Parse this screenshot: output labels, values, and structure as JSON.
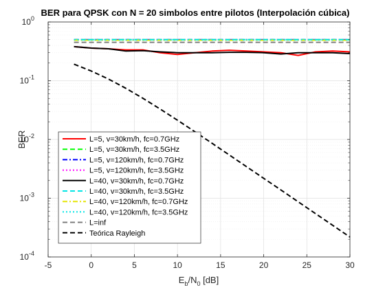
{
  "chart_data": {
    "type": "line",
    "title": "BER para QPSK con N = 20 simbolos entre pilotos (Interpolación cúbica)",
    "xlabel": {
      "main": "E",
      "sub1": "b",
      "mid": "/N",
      "sub2": "0",
      "tail": " [dB]"
    },
    "ylabel": "BER",
    "xlim": [
      -5,
      30
    ],
    "ylim": [
      0.0001,
      1
    ],
    "yscale": "log",
    "grid": "on (major and minor)",
    "legend_position": "bottom-left",
    "xticks": [
      "-5",
      "0",
      "5",
      "10",
      "15",
      "20",
      "25",
      "30"
    ],
    "yticks": [
      {
        "value": 1,
        "base": "10",
        "exp": "0"
      },
      {
        "value": 0.1,
        "base": "10",
        "exp": "-1"
      },
      {
        "value": 0.01,
        "base": "10",
        "exp": "-2"
      },
      {
        "value": 0.001,
        "base": "10",
        "exp": "-3"
      },
      {
        "value": 0.0001,
        "base": "10",
        "exp": "-4"
      }
    ],
    "series": [
      {
        "name": "L=5, v=30km/h, fc=0.7GHz",
        "color": "#ff0000",
        "dash": "solid",
        "x": [
          -2,
          0,
          2,
          4,
          6,
          8,
          10,
          12,
          14,
          16,
          18,
          20,
          22,
          24,
          26,
          28,
          30
        ],
        "y": [
          0.38,
          0.36,
          0.35,
          0.335,
          0.335,
          0.3,
          0.28,
          0.3,
          0.32,
          0.33,
          0.32,
          0.31,
          0.3,
          0.27,
          0.31,
          0.32,
          0.31
        ]
      },
      {
        "name": "L=5, v=30km/h, fc=3.5GHz",
        "color": "#00ff00",
        "dash": "dash",
        "x": [
          -2,
          2,
          6,
          10,
          14,
          18,
          22,
          26,
          30
        ],
        "y": [
          0.5,
          0.5,
          0.5,
          0.5,
          0.5,
          0.5,
          0.5,
          0.5,
          0.5
        ]
      },
      {
        "name": "L=5, v=120km/h, fc=0.7GHz",
        "color": "#0000ff",
        "dash": "dashdot",
        "x": [
          -2,
          2,
          6,
          10,
          14,
          18,
          22,
          26,
          30
        ],
        "y": [
          0.5,
          0.5,
          0.5,
          0.5,
          0.5,
          0.5,
          0.5,
          0.5,
          0.5
        ]
      },
      {
        "name": "L=5, v=120km/h, fc=3.5GHz",
        "color": "#ff00ff",
        "dash": "dot",
        "x": [
          -2,
          2,
          6,
          10,
          14,
          18,
          22,
          26,
          30
        ],
        "y": [
          0.5,
          0.5,
          0.5,
          0.5,
          0.5,
          0.5,
          0.5,
          0.5,
          0.5
        ]
      },
      {
        "name": "L=40, v=30km/h, fc=0.7GHz",
        "color": "#000000",
        "dash": "solid",
        "x": [
          -2,
          0,
          2,
          4,
          6,
          8,
          10,
          12,
          14,
          16,
          18,
          20,
          22,
          24,
          26,
          28,
          30
        ],
        "y": [
          0.38,
          0.36,
          0.35,
          0.32,
          0.325,
          0.31,
          0.3,
          0.3,
          0.3,
          0.305,
          0.305,
          0.3,
          0.285,
          0.3,
          0.3,
          0.3,
          0.29
        ]
      },
      {
        "name": "L=40, v=30km/h, fc=3.5GHz",
        "color": "#00e5e5",
        "dash": "dash",
        "x": [
          -2,
          2,
          6,
          10,
          14,
          18,
          22,
          26,
          30
        ],
        "y": [
          0.5,
          0.5,
          0.5,
          0.5,
          0.5,
          0.5,
          0.5,
          0.5,
          0.5
        ]
      },
      {
        "name": "L=40, v=120km/h, fc=0.7GHz",
        "color": "#e5e500",
        "dash": "dashdot",
        "x": [
          -2,
          2,
          6,
          10,
          14,
          18,
          22,
          26,
          30
        ],
        "y": [
          0.49,
          0.49,
          0.49,
          0.49,
          0.49,
          0.49,
          0.49,
          0.49,
          0.49
        ]
      },
      {
        "name": "L=40, v=120km/h, fc=3.5GHz",
        "color": "#00e5e5",
        "dash": "dot",
        "x": [
          -2,
          2,
          6,
          10,
          14,
          18,
          22,
          26,
          30
        ],
        "y": [
          0.5,
          0.5,
          0.5,
          0.5,
          0.5,
          0.5,
          0.5,
          0.5,
          0.5
        ]
      },
      {
        "name": "L=inf",
        "color": "#7f7f7f",
        "dash": "dash",
        "x": [
          -2,
          2,
          6,
          10,
          14,
          18,
          22,
          26,
          30
        ],
        "y": [
          0.45,
          0.45,
          0.45,
          0.45,
          0.45,
          0.45,
          0.45,
          0.45,
          0.45
        ]
      },
      {
        "name": "Teórica Rayleigh",
        "color": "#000000",
        "dash": "dash",
        "x": [
          -2,
          0,
          2,
          4,
          6,
          8,
          10,
          12,
          14,
          16,
          18,
          20,
          22,
          24,
          26,
          28,
          30
        ],
        "y": [
          0.1913,
          0.1464,
          0.1067,
          0.0745,
          0.0502,
          0.0329,
          0.0213,
          0.0136,
          0.00863,
          0.00546,
          0.00345,
          0.00218,
          0.00138,
          0.000869,
          0.000548,
          0.000346,
          0.000218
        ]
      }
    ]
  }
}
